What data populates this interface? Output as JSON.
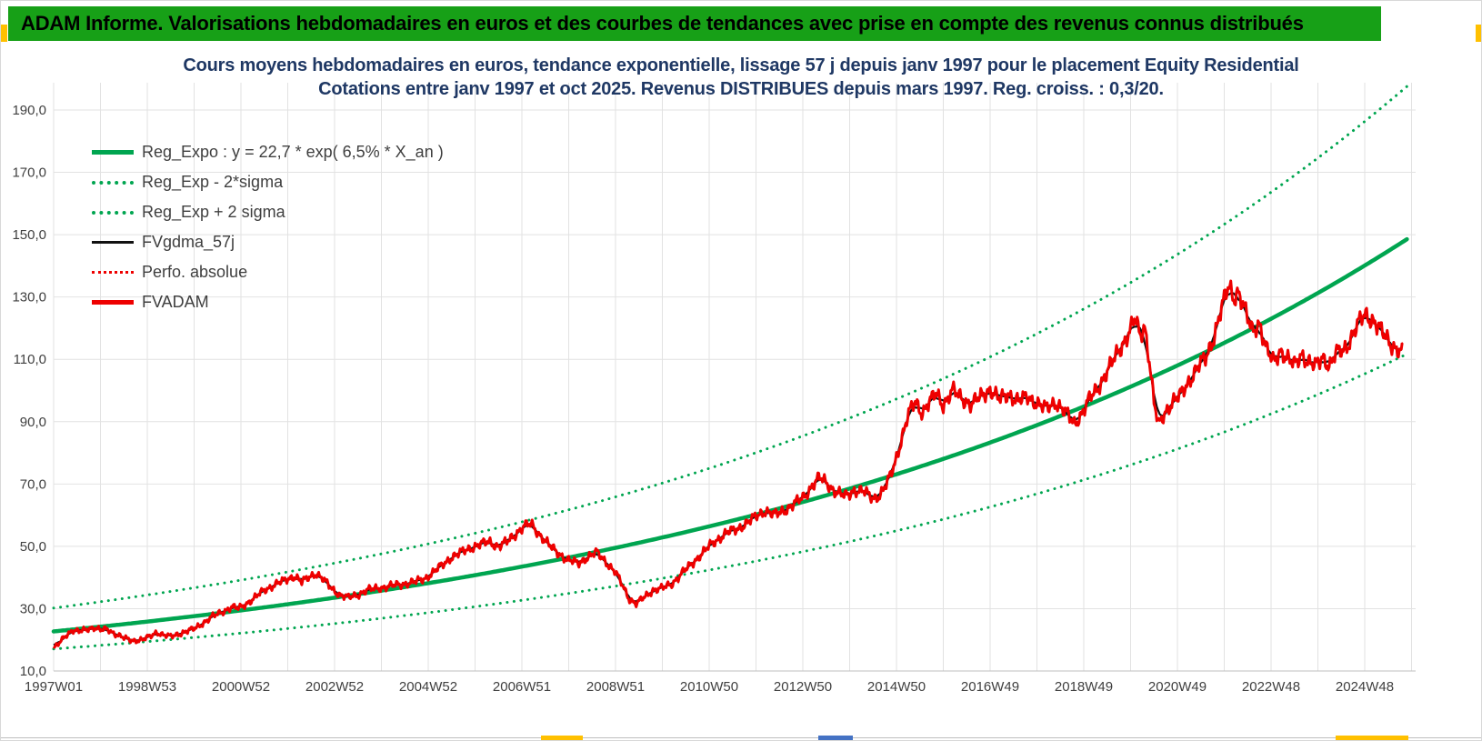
{
  "header": {
    "title": "ADAM Informe. Valorisations hebdomadaires en euros et des courbes de tendances avec prise en compte des revenus connus distribués"
  },
  "chart": {
    "title_line1": "Cours moyens hebdomadaires en euros, tendance exponentielle, lissage 57 j depuis janv 1997 pour le placement Equity Residential",
    "title_line2": "Cotations entre janv 1997 et oct 2025. Revenus DISTRIBUES depuis mars 1997. Reg. croiss. : 0,3/20.",
    "legend": [
      {
        "label": "Reg_Expo : y = 22,7 * exp( 6,5% *  X_an )",
        "style": "solid",
        "color": "#00A550",
        "weight": 5
      },
      {
        "label": "Reg_Exp - 2*sigma",
        "style": "dotted",
        "color": "#00A550",
        "weight": 4
      },
      {
        "label": "Reg_Exp + 2 sigma",
        "style": "dotted",
        "color": "#00A550",
        "weight": 4
      },
      {
        "label": "FVgdma_57j",
        "style": "solid",
        "color": "#111111",
        "weight": 3
      },
      {
        "label": "Perfo. absolue",
        "style": "dotted",
        "color": "#EE0000",
        "weight": 3
      },
      {
        "label": "FVADAM",
        "style": "solid",
        "color": "#EE0000",
        "weight": 5
      }
    ]
  },
  "chart_data": {
    "type": "line",
    "title": "Cours moyens hebdomadaires en euros, tendance exponentielle, lissage 57 j depuis janv 1997 pour le placement Equity Residential",
    "subtitle": "Cotations entre janv 1997 et oct 2025. Revenus DISTRIBUES depuis mars 1997. Reg. croiss. : 0,3/20.",
    "grid": true,
    "legend_position": "top-left",
    "x_axis": {
      "unit": "week (years since Jan 1997)",
      "range_years": [
        0,
        28.9
      ],
      "tick_years": [
        0,
        2,
        4,
        6,
        8,
        10,
        12,
        14,
        16,
        18,
        20,
        22,
        24,
        26,
        28
      ],
      "tick_labels": [
        "1997W01",
        "1998W53",
        "2000W52",
        "2002W52",
        "2004W52",
        "2006W51",
        "2008W51",
        "2010W50",
        "2012W50",
        "2014W50",
        "2016W49",
        "2018W49",
        "2020W49",
        "2022W48",
        "2024W48"
      ]
    },
    "y_axis": {
      "unit": "euros",
      "range": [
        10,
        200
      ],
      "tick_values": [
        10,
        30,
        50,
        70,
        90,
        110,
        130,
        150,
        170,
        190
      ],
      "tick_labels": [
        "10,0",
        "30,0",
        "50,0",
        "70,0",
        "90,0",
        "110,0",
        "130,0",
        "150,0",
        "170,0",
        "190,0"
      ]
    },
    "regression": {
      "formula": "y = 22,7 * exp( 6,5% * X_an )",
      "coefficient": 22.7,
      "annual_rate": 0.065,
      "band_factor": 1.33,
      "band_labels": [
        "Reg_Exp - 2*sigma",
        "Reg_Exp + 2 sigma"
      ]
    },
    "noise_amplitude": 1.0,
    "series": [
      {
        "name": "FVADAM",
        "color": "#EE0000",
        "points": [
          [
            0.0,
            17.0
          ],
          [
            0.1,
            18.5
          ],
          [
            0.25,
            21.5
          ],
          [
            0.4,
            23.0
          ],
          [
            0.55,
            22.5
          ],
          [
            0.7,
            23.5
          ],
          [
            0.85,
            24.0
          ],
          [
            1.0,
            23.0
          ],
          [
            1.15,
            23.5
          ],
          [
            1.3,
            22.0
          ],
          [
            1.5,
            20.5
          ],
          [
            1.7,
            19.8
          ],
          [
            1.9,
            20.0
          ],
          [
            2.05,
            21.0
          ],
          [
            2.2,
            22.5
          ],
          [
            2.35,
            21.5
          ],
          [
            2.5,
            21.0
          ],
          [
            2.65,
            21.8
          ],
          [
            2.8,
            22.5
          ],
          [
            3.0,
            23.5
          ],
          [
            3.2,
            25.5
          ],
          [
            3.4,
            27.5
          ],
          [
            3.6,
            29.0
          ],
          [
            3.8,
            30.5
          ],
          [
            3.95,
            30.0
          ],
          [
            4.1,
            31.5
          ],
          [
            4.3,
            33.5
          ],
          [
            4.5,
            36.0
          ],
          [
            4.7,
            37.5
          ],
          [
            4.85,
            38.5
          ],
          [
            5.0,
            39.5
          ],
          [
            5.15,
            40.5
          ],
          [
            5.3,
            38.5
          ],
          [
            5.45,
            40.0
          ],
          [
            5.6,
            41.5
          ],
          [
            5.75,
            39.5
          ],
          [
            5.9,
            37.0
          ],
          [
            6.1,
            34.5
          ],
          [
            6.3,
            33.5
          ],
          [
            6.5,
            34.5
          ],
          [
            6.7,
            36.0
          ],
          [
            6.9,
            36.5
          ],
          [
            7.1,
            37.0
          ],
          [
            7.3,
            37.5
          ],
          [
            7.5,
            38.0
          ],
          [
            7.7,
            38.5
          ],
          [
            7.9,
            39.5
          ],
          [
            8.1,
            41.5
          ],
          [
            8.3,
            44.0
          ],
          [
            8.5,
            46.5
          ],
          [
            8.7,
            48.0
          ],
          [
            8.9,
            49.5
          ],
          [
            9.1,
            50.5
          ],
          [
            9.3,
            51.5
          ],
          [
            9.5,
            50.0
          ],
          [
            9.7,
            51.5
          ],
          [
            9.9,
            54.5
          ],
          [
            10.05,
            56.5
          ],
          [
            10.2,
            57.0
          ],
          [
            10.4,
            53.5
          ],
          [
            10.6,
            50.0
          ],
          [
            10.8,
            47.5
          ],
          [
            11.0,
            45.5
          ],
          [
            11.2,
            44.5
          ],
          [
            11.4,
            46.5
          ],
          [
            11.6,
            48.0
          ],
          [
            11.8,
            45.0
          ],
          [
            12.0,
            41.5
          ],
          [
            12.15,
            37.5
          ],
          [
            12.3,
            33.0
          ],
          [
            12.45,
            31.5
          ],
          [
            12.6,
            33.5
          ],
          [
            12.8,
            36.0
          ],
          [
            13.0,
            36.5
          ],
          [
            13.2,
            38.0
          ],
          [
            13.4,
            41.0
          ],
          [
            13.6,
            44.0
          ],
          [
            13.8,
            47.0
          ],
          [
            14.0,
            50.0
          ],
          [
            14.2,
            52.5
          ],
          [
            14.4,
            54.5
          ],
          [
            14.6,
            55.5
          ],
          [
            14.8,
            57.5
          ],
          [
            15.0,
            59.5
          ],
          [
            15.2,
            61.5
          ],
          [
            15.4,
            60.0
          ],
          [
            15.6,
            61.5
          ],
          [
            15.8,
            63.5
          ],
          [
            16.0,
            65.5
          ],
          [
            16.2,
            69.5
          ],
          [
            16.35,
            72.0
          ],
          [
            16.5,
            70.5
          ],
          [
            16.7,
            67.5
          ],
          [
            16.9,
            66.0
          ],
          [
            17.1,
            68.0
          ],
          [
            17.3,
            67.5
          ],
          [
            17.5,
            65.5
          ],
          [
            17.65,
            66.5
          ],
          [
            17.8,
            70.0
          ],
          [
            17.95,
            76.0
          ],
          [
            18.1,
            84.0
          ],
          [
            18.25,
            92.0
          ],
          [
            18.4,
            96.5
          ],
          [
            18.55,
            93.0
          ],
          [
            18.7,
            96.0
          ],
          [
            18.85,
            99.0
          ],
          [
            19.0,
            95.5
          ],
          [
            19.2,
            100.0
          ],
          [
            19.4,
            97.5
          ],
          [
            19.6,
            95.5
          ],
          [
            19.8,
            98.0
          ],
          [
            20.0,
            100.5
          ],
          [
            20.2,
            97.0
          ],
          [
            20.4,
            99.0
          ],
          [
            20.6,
            96.5
          ],
          [
            20.8,
            98.0
          ],
          [
            21.0,
            96.0
          ],
          [
            21.2,
            94.0
          ],
          [
            21.4,
            96.5
          ],
          [
            21.6,
            93.0
          ],
          [
            21.8,
            89.5
          ],
          [
            21.95,
            92.5
          ],
          [
            22.1,
            96.5
          ],
          [
            22.3,
            101.0
          ],
          [
            22.5,
            106.0
          ],
          [
            22.7,
            111.5
          ],
          [
            22.85,
            115.5
          ],
          [
            23.0,
            119.5
          ],
          [
            23.1,
            123.0
          ],
          [
            23.2,
            117.5
          ],
          [
            23.3,
            121.0
          ],
          [
            23.4,
            110.0
          ],
          [
            23.5,
            96.0
          ],
          [
            23.6,
            88.5
          ],
          [
            23.75,
            93.5
          ],
          [
            23.9,
            96.5
          ],
          [
            24.05,
            98.0
          ],
          [
            24.25,
            103.0
          ],
          [
            24.45,
            108.0
          ],
          [
            24.6,
            110.0
          ],
          [
            24.75,
            116.0
          ],
          [
            24.9,
            124.0
          ],
          [
            25.0,
            129.0
          ],
          [
            25.1,
            133.5
          ],
          [
            25.2,
            130.0
          ],
          [
            25.3,
            132.0
          ],
          [
            25.45,
            125.0
          ],
          [
            25.6,
            119.0
          ],
          [
            25.75,
            122.0
          ],
          [
            25.9,
            113.0
          ],
          [
            26.05,
            109.0
          ],
          [
            26.2,
            113.0
          ],
          [
            26.35,
            110.0
          ],
          [
            26.5,
            108.0
          ],
          [
            26.65,
            112.0
          ],
          [
            26.8,
            109.0
          ],
          [
            26.95,
            107.5
          ],
          [
            27.1,
            111.0
          ],
          [
            27.25,
            108.0
          ],
          [
            27.4,
            112.0
          ],
          [
            27.55,
            113.0
          ],
          [
            27.7,
            116.5
          ],
          [
            27.85,
            121.0
          ],
          [
            28.0,
            124.5
          ],
          [
            28.15,
            123.0
          ],
          [
            28.3,
            120.0
          ],
          [
            28.45,
            117.0
          ],
          [
            28.6,
            114.5
          ],
          [
            28.8,
            112.0
          ]
        ]
      },
      {
        "name": "FVgdma_57j",
        "color": "#111111",
        "derived": "moving average (57 j) of FVADAM"
      },
      {
        "name": "Perfo. absolue",
        "color": "#EE0000",
        "style": "dotted",
        "same_as": "FVADAM"
      },
      {
        "name": "Reg_Expo",
        "color": "#00A550",
        "derived": "22,7 * exp(6,5% * X_an)"
      },
      {
        "name": "Reg_Exp - 2*sigma",
        "color": "#00A550",
        "style": "dotted",
        "derived": "Reg_Expo / 1,33"
      },
      {
        "name": "Reg_Exp + 2 sigma",
        "color": "#00A550",
        "style": "dotted",
        "derived": "Reg_Expo * 1,33"
      }
    ]
  },
  "decorations": {
    "corner_color": "#FFC000",
    "blue_color": "#4472C4"
  }
}
